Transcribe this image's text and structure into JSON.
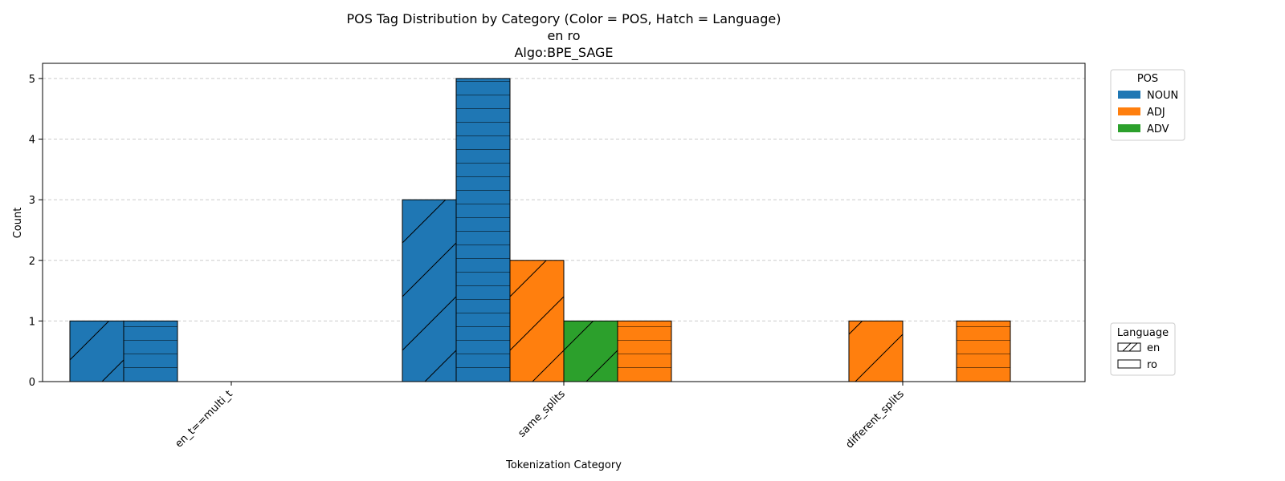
{
  "chart_data": {
    "type": "bar",
    "title": [
      "POS Tag Distribution by Category (Color = POS, Hatch = Language)",
      "en ro",
      "Algo:BPE_SAGE"
    ],
    "xlabel": "Tokenization Category",
    "ylabel": "Count",
    "ylim": [
      0,
      5.25
    ],
    "yticks": [
      0,
      1,
      2,
      3,
      4,
      5
    ],
    "grid": "y-dashed",
    "categories": [
      "en_t==multi_t",
      "same_splits",
      "different_splits"
    ],
    "series": [
      {
        "pos": "NOUN",
        "lang": "en",
        "values": [
          1,
          3,
          0
        ]
      },
      {
        "pos": "NOUN",
        "lang": "ro",
        "values": [
          1,
          5,
          0
        ]
      },
      {
        "pos": "ADJ",
        "lang": "en",
        "values": [
          0,
          2,
          1
        ]
      },
      {
        "pos": "ADV",
        "lang": "en",
        "values": [
          0,
          1,
          0
        ]
      },
      {
        "pos": "ADJ",
        "lang": "ro",
        "values": [
          0,
          1,
          1
        ]
      },
      {
        "pos": "ADV",
        "lang": "ro",
        "values": [
          0,
          0,
          0
        ]
      }
    ],
    "colors": {
      "NOUN": "#1f77b4",
      "ADJ": "#ff7f0e",
      "ADV": "#2ca02c"
    },
    "hatches": {
      "en": "diagonal",
      "ro": "horizontal"
    },
    "legend_pos": {
      "title": "POS",
      "placement": "outside-top-right",
      "entries": [
        "NOUN",
        "ADJ",
        "ADV"
      ]
    },
    "legend_lang": {
      "title": "Language",
      "placement": "outside-bottom-right",
      "entries": [
        "en",
        "ro"
      ]
    }
  }
}
